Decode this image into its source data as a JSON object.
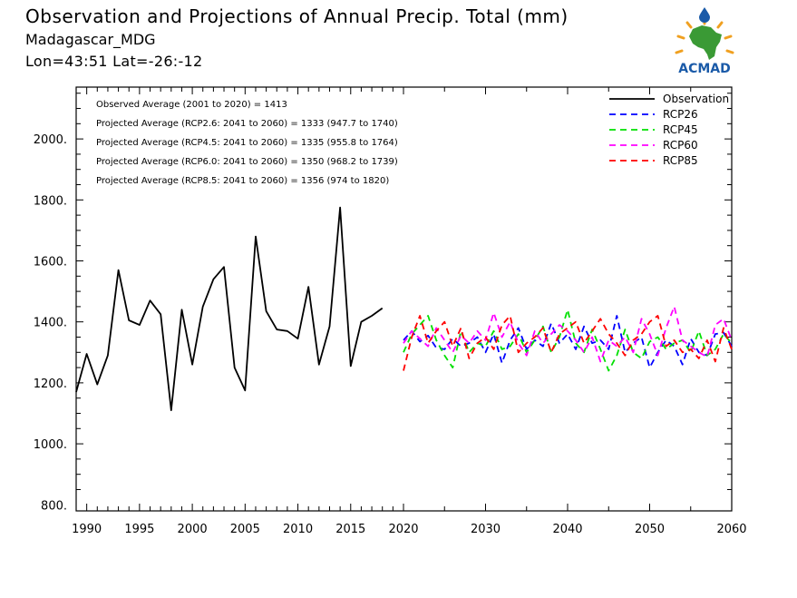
{
  "header": {
    "title": "Observation and Projections of Annual Precip. Total (mm)",
    "region": "Madagascar_MDG",
    "coords": "Lon=43:51   Lat=-26:-12"
  },
  "logo": {
    "text": "ACMAD",
    "colors": {
      "africa": "#3a9a35",
      "text": "#1a5aa8",
      "sun": "#f0a020",
      "drop": "#1a5aa8"
    }
  },
  "stats": [
    "Observed Average (2001 to 2020) = 1413",
    "Projected Average (RCP2.6: 2041 to 2060) = 1333 (947.7 to 1740)",
    "Projected Average (RCP4.5: 2041 to 2060) = 1335 (955.8 to 1764)",
    "Projected Average (RCP6.0: 2041 to 2060) = 1350 (968.2 to 1739)",
    "Projected Average (RCP8.5: 2041 to 2060) = 1356 (974 to 1820)"
  ],
  "chart_data": {
    "type": "line",
    "title": "Observation and Projections of Annual Precip. Total (mm)",
    "xlabel": "",
    "ylabel": "",
    "ylim": [
      780,
      2170
    ],
    "xlim": [
      1989,
      2060
    ],
    "x_ticks_labeled": [
      "1990",
      "1995",
      "2000",
      "2005",
      "2010",
      "2015",
      "2020",
      "2030",
      "2040",
      "2050",
      "2060"
    ],
    "y_ticks_labeled": [
      "800.",
      "1000.",
      "1200.",
      "1400.",
      "1600.",
      "1800.",
      "2000."
    ],
    "legend_position": "top-right",
    "grid": false,
    "series": [
      {
        "name": "Observation",
        "color": "#000000",
        "dash": "solid",
        "x": [
          1989,
          1990,
          1991,
          1992,
          1993,
          1994,
          1995,
          1996,
          1997,
          1998,
          1999,
          2000,
          2001,
          2002,
          2003,
          2004,
          2005,
          2006,
          2007,
          2008,
          2009,
          2010,
          2011,
          2012,
          2013,
          2014,
          2015,
          2016,
          2017,
          2018,
          2019,
          2020
        ],
        "values": [
          1170,
          1295,
          1195,
          1290,
          1570,
          1405,
          1390,
          1470,
          1425,
          1110,
          1440,
          1260,
          1450,
          1540,
          1580,
          1250,
          1175,
          1680,
          1435,
          1375,
          1370,
          1345,
          1515,
          1260,
          1385,
          1775,
          1255,
          1400,
          1420,
          1445,
          null,
          null
        ]
      },
      {
        "name": "RCP26",
        "color": "#0000ff",
        "dash": "dashed",
        "x": [
          2020,
          2021,
          2022,
          2023,
          2024,
          2025,
          2026,
          2027,
          2028,
          2029,
          2030,
          2031,
          2032,
          2033,
          2034,
          2035,
          2036,
          2037,
          2038,
          2039,
          2040,
          2041,
          2042,
          2043,
          2044,
          2045,
          2046,
          2047,
          2048,
          2049,
          2050,
          2051,
          2052,
          2053,
          2054,
          2055,
          2056,
          2057,
          2058,
          2059,
          2060
        ],
        "values": [
          1340,
          1370,
          1335,
          1355,
          1315,
          1310,
          1345,
          1320,
          1330,
          1350,
          1300,
          1360,
          1265,
          1340,
          1380,
          1310,
          1340,
          1320,
          1395,
          1330,
          1360,
          1310,
          1385,
          1330,
          1340,
          1310,
          1420,
          1300,
          1330,
          1350,
          1250,
          1300,
          1340,
          1320,
          1260,
          1345,
          1300,
          1290,
          1360,
          1365,
          1320
        ]
      },
      {
        "name": "RCP45",
        "color": "#00e000",
        "dash": "dashed",
        "x": [
          2020,
          2021,
          2022,
          2023,
          2024,
          2025,
          2026,
          2027,
          2028,
          2029,
          2030,
          2031,
          2032,
          2033,
          2034,
          2035,
          2036,
          2037,
          2038,
          2039,
          2040,
          2041,
          2042,
          2043,
          2044,
          2045,
          2046,
          2047,
          2048,
          2049,
          2050,
          2051,
          2052,
          2053,
          2054,
          2055,
          2056,
          2057,
          2058,
          2059,
          2060
        ],
        "values": [
          1300,
          1360,
          1390,
          1420,
          1340,
          1290,
          1250,
          1370,
          1300,
          1330,
          1320,
          1370,
          1310,
          1320,
          1360,
          1300,
          1340,
          1385,
          1300,
          1350,
          1440,
          1330,
          1300,
          1375,
          1310,
          1240,
          1290,
          1375,
          1300,
          1280,
          1335,
          1350,
          1310,
          1330,
          1340,
          1300,
          1370,
          1290,
          1310,
          1360,
          1330
        ]
      },
      {
        "name": "RCP60",
        "color": "#ff00ff",
        "dash": "dashed",
        "x": [
          2020,
          2021,
          2022,
          2023,
          2024,
          2025,
          2026,
          2027,
          2028,
          2029,
          2030,
          2031,
          2032,
          2033,
          2034,
          2035,
          2036,
          2037,
          2038,
          2039,
          2040,
          2041,
          2042,
          2043,
          2044,
          2045,
          2046,
          2047,
          2048,
          2049,
          2050,
          2051,
          2052,
          2053,
          2054,
          2055,
          2056,
          2057,
          2058,
          2059,
          2060
        ],
        "values": [
          1330,
          1370,
          1345,
          1320,
          1380,
          1340,
          1300,
          1355,
          1330,
          1370,
          1340,
          1430,
          1350,
          1400,
          1330,
          1290,
          1370,
          1330,
          1360,
          1390,
          1370,
          1340,
          1300,
          1350,
          1270,
          1340,
          1320,
          1350,
          1300,
          1410,
          1360,
          1290,
          1380,
          1450,
          1340,
          1320,
          1300,
          1285,
          1390,
          1410,
          1340
        ]
      },
      {
        "name": "RCP85",
        "color": "#ff0000",
        "dash": "dashed",
        "x": [
          2020,
          2021,
          2022,
          2023,
          2024,
          2025,
          2026,
          2027,
          2028,
          2029,
          2030,
          2031,
          2032,
          2033,
          2034,
          2035,
          2036,
          2037,
          2038,
          2039,
          2040,
          2041,
          2042,
          2043,
          2044,
          2045,
          2046,
          2047,
          2048,
          2049,
          2050,
          2051,
          2052,
          2053,
          2054,
          2055,
          2056,
          2057,
          2058,
          2059,
          2060
        ],
        "values": [
          1240,
          1350,
          1420,
          1330,
          1370,
          1400,
          1320,
          1380,
          1280,
          1330,
          1350,
          1310,
          1390,
          1420,
          1300,
          1330,
          1350,
          1380,
          1300,
          1360,
          1380,
          1400,
          1330,
          1370,
          1410,
          1360,
          1330,
          1290,
          1340,
          1360,
          1400,
          1420,
          1320,
          1340,
          1300,
          1310,
          1280,
          1340,
          1270,
          1380,
          1310
        ]
      }
    ]
  }
}
